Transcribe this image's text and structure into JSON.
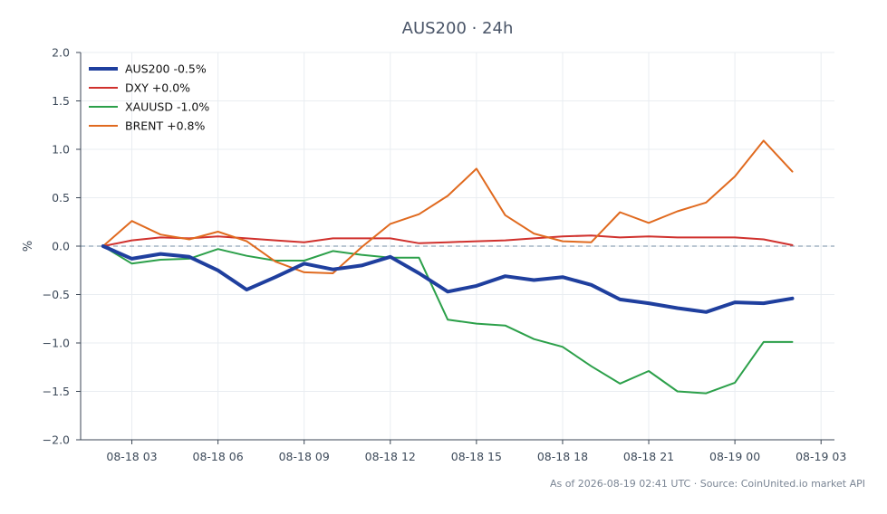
{
  "chart_data": {
    "type": "line",
    "title": "AUS200 · 24h",
    "xlabel": "",
    "ylabel": "%",
    "ylim": [
      -2.0,
      2.0
    ],
    "yticks": [
      -2.0,
      -1.5,
      -1.0,
      -0.5,
      0.0,
      0.5,
      1.0,
      1.5,
      2.0
    ],
    "ytick_labels": [
      "−2.0",
      "−1.5",
      "−1.0",
      "−0.5",
      "0.0",
      "0.5",
      "1.0",
      "1.5",
      "2.0"
    ],
    "xlim": [
      "2026-08-18 01:13",
      "2026-08-19 03:28"
    ],
    "xticks": [
      "2026-08-18 03:00",
      "2026-08-18 06:00",
      "2026-08-18 09:00",
      "2026-08-18 12:00",
      "2026-08-18 15:00",
      "2026-08-18 18:00",
      "2026-08-18 21:00",
      "2026-08-19 00:00",
      "2026-08-19 03:00"
    ],
    "xtick_labels": [
      "08-18 03",
      "08-18 06",
      "08-18 09",
      "08-18 12",
      "08-18 15",
      "08-18 18",
      "08-18 21",
      "08-19 00",
      "08-19 03"
    ],
    "grid": true,
    "legend_position": "top-left",
    "baseline": 0.0,
    "baseline_color": "#8fa3b8",
    "x": [
      "2026-08-18 02:00",
      "2026-08-18 03:00",
      "2026-08-18 04:00",
      "2026-08-18 05:00",
      "2026-08-18 06:00",
      "2026-08-18 07:00",
      "2026-08-18 08:00",
      "2026-08-18 09:00",
      "2026-08-18 10:00",
      "2026-08-18 11:00",
      "2026-08-18 12:00",
      "2026-08-18 13:00",
      "2026-08-18 14:00",
      "2026-08-18 15:00",
      "2026-08-18 16:00",
      "2026-08-18 17:00",
      "2026-08-18 18:00",
      "2026-08-18 19:00",
      "2026-08-18 20:00",
      "2026-08-18 21:00",
      "2026-08-18 22:00",
      "2026-08-18 23:00",
      "2026-08-19 00:00",
      "2026-08-19 01:00",
      "2026-08-19 02:00"
    ],
    "series": [
      {
        "name": "AUS200 -0.5%",
        "color": "#1f3f9e",
        "width": 4,
        "values": [
          0.0,
          -0.13,
          -0.08,
          -0.11,
          -0.25,
          -0.45,
          -0.32,
          -0.18,
          -0.24,
          -0.2,
          -0.11,
          -0.28,
          -0.47,
          -0.41,
          -0.31,
          -0.35,
          -0.32,
          -0.4,
          -0.55,
          -0.59,
          -0.64,
          -0.68,
          -0.58,
          -0.59,
          -0.54
        ]
      },
      {
        "name": "DXY +0.0%",
        "color": "#d0312d",
        "width": 2,
        "values": [
          0.0,
          0.06,
          0.09,
          0.08,
          0.1,
          0.08,
          0.06,
          0.04,
          0.08,
          0.08,
          0.08,
          0.03,
          0.04,
          0.05,
          0.06,
          0.08,
          0.1,
          0.11,
          0.09,
          0.1,
          0.09,
          0.09,
          0.09,
          0.07,
          0.01
        ]
      },
      {
        "name": "XAUUSD -1.0%",
        "color": "#2ca04a",
        "width": 2,
        "values": [
          0.0,
          -0.18,
          -0.14,
          -0.13,
          -0.03,
          -0.1,
          -0.15,
          -0.15,
          -0.05,
          -0.09,
          -0.12,
          -0.12,
          -0.76,
          -0.8,
          -0.82,
          -0.96,
          -1.04,
          -1.24,
          -1.42,
          -1.29,
          -1.5,
          -1.52,
          -1.41,
          -0.99,
          -0.99
        ]
      },
      {
        "name": "BRENT +0.8%",
        "color": "#e06a1f",
        "width": 2,
        "values": [
          0.0,
          0.26,
          0.12,
          0.07,
          0.15,
          0.05,
          -0.16,
          -0.27,
          -0.28,
          -0.01,
          0.23,
          0.33,
          0.52,
          0.8,
          0.32,
          0.13,
          0.05,
          0.04,
          0.35,
          0.24,
          0.36,
          0.45,
          0.72,
          1.09,
          0.77
        ]
      }
    ],
    "footer": "As of 2026-08-19 02:41 UTC · Source: CoinUnited.io market API"
  }
}
